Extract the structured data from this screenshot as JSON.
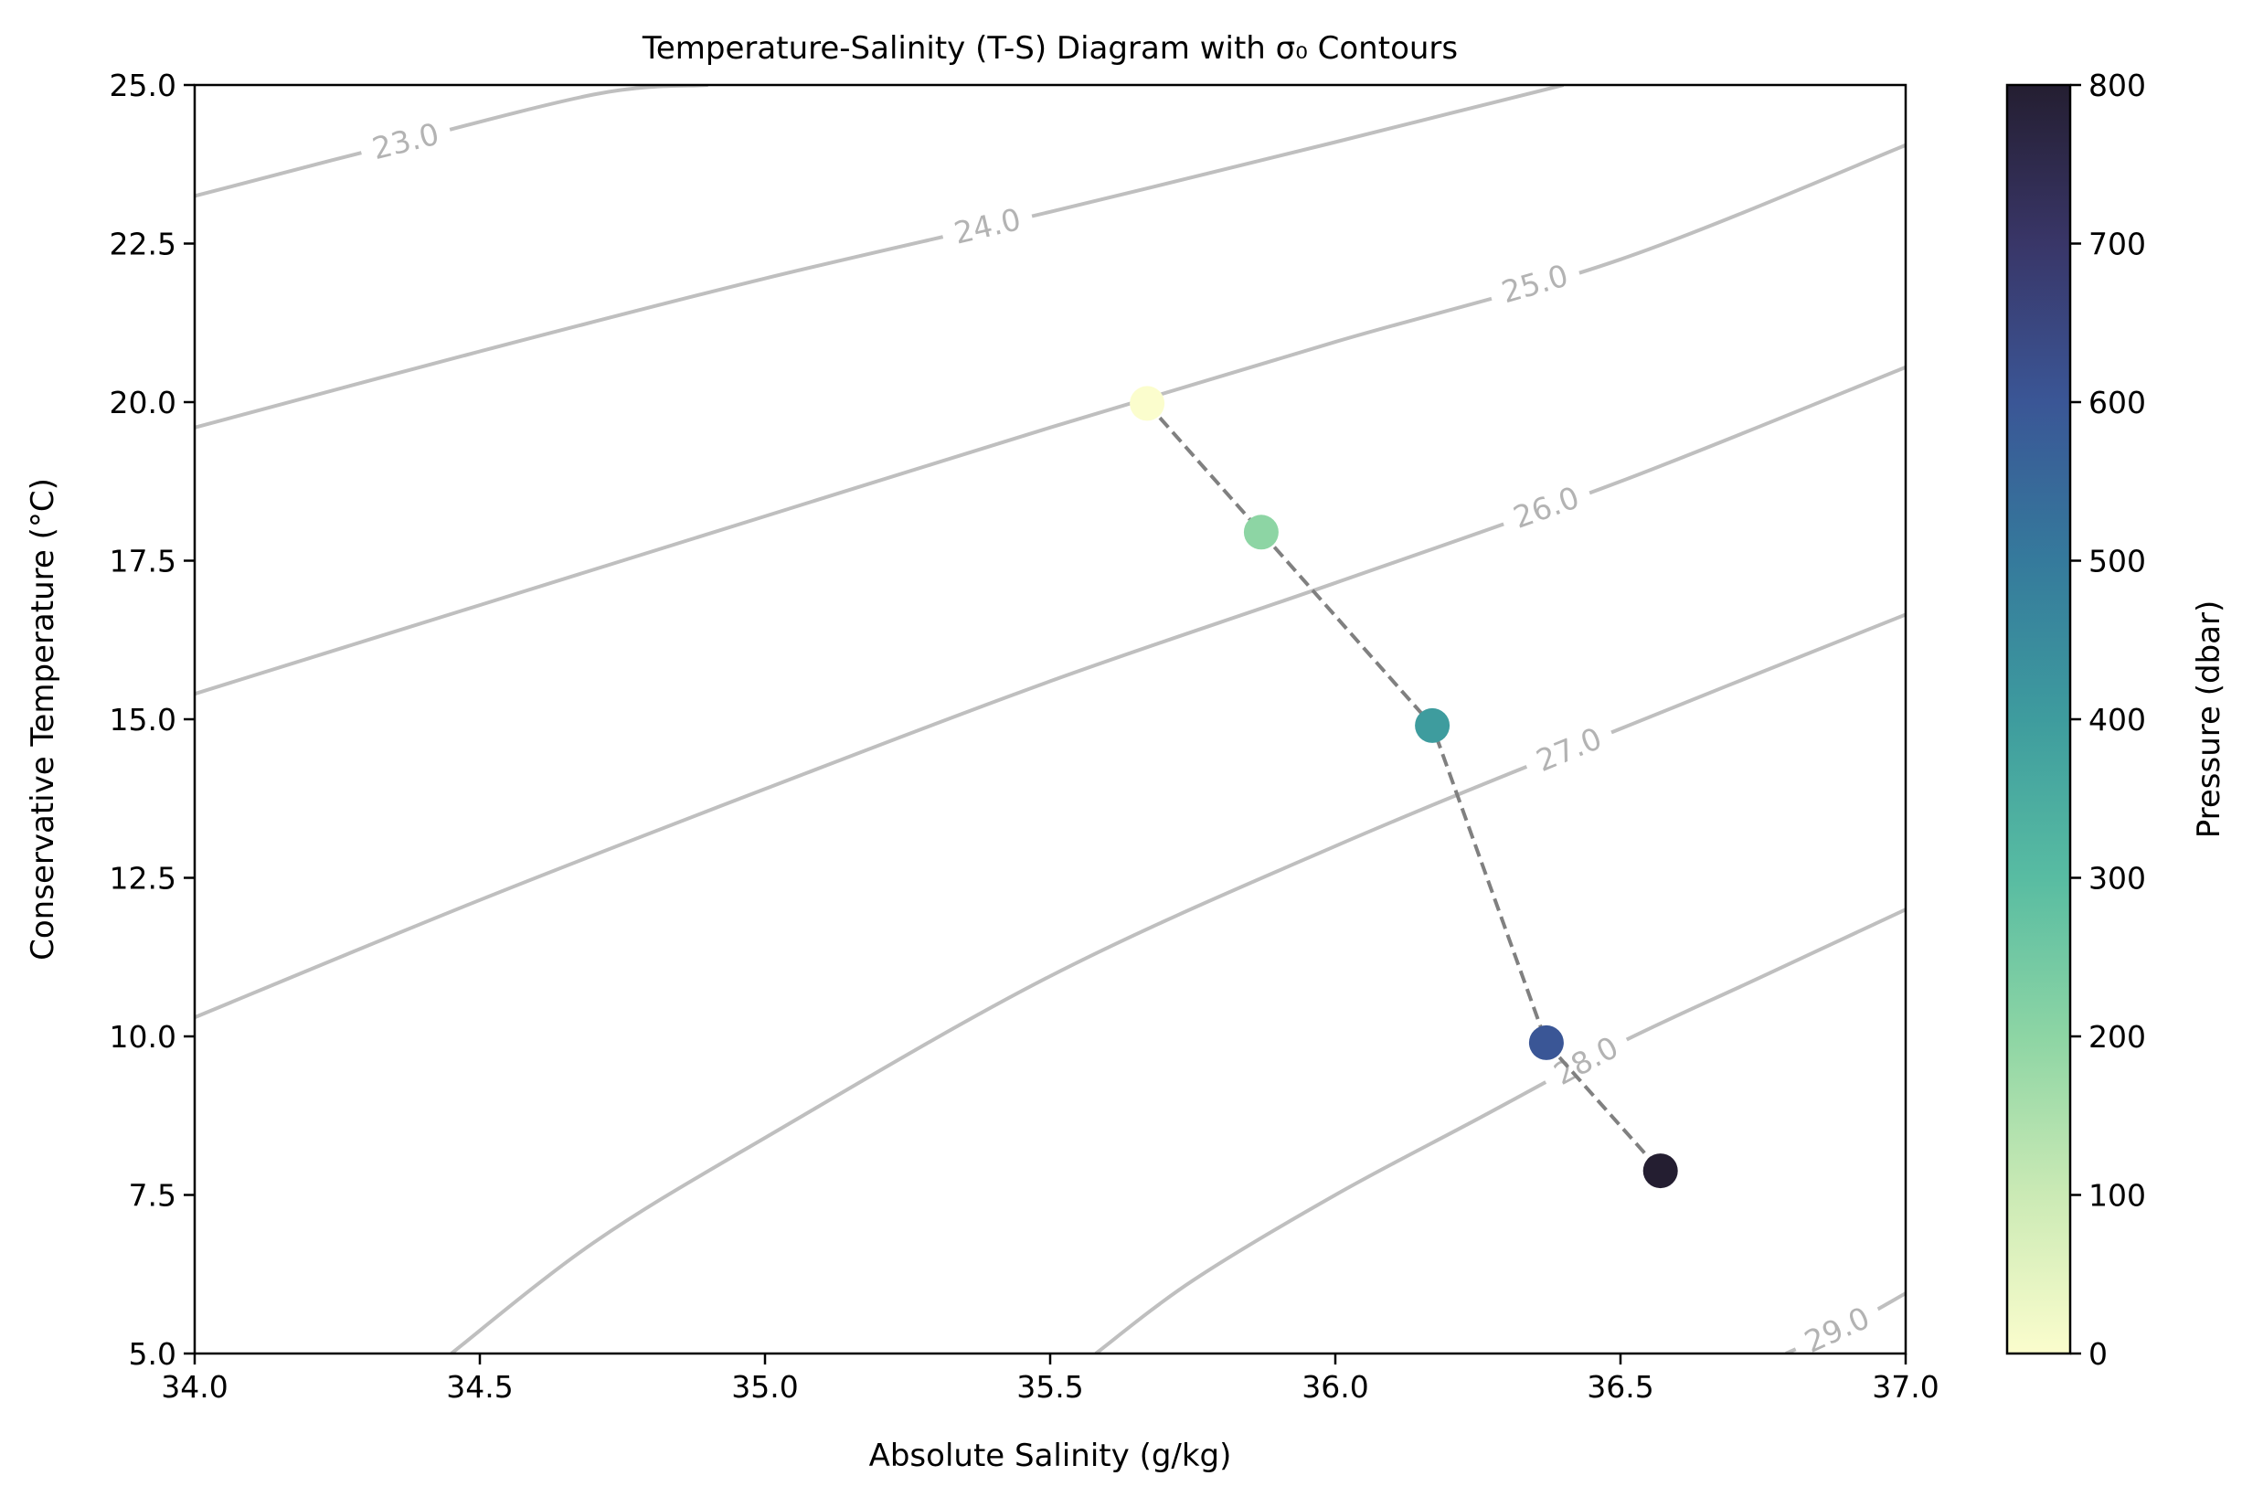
{
  "chart_data": {
    "type": "scatter",
    "title": "Temperature-Salinity (T-S) Diagram with σ₀ Contours",
    "xlabel": "Absolute Salinity (g/kg)",
    "ylabel": "Conservative Temperature (°C)",
    "xlim": [
      34.0,
      37.0
    ],
    "ylim": [
      5.0,
      25.0
    ],
    "xticks": [
      34.0,
      34.5,
      35.0,
      35.5,
      36.0,
      36.5,
      37.0
    ],
    "xtick_labels": [
      "34.0",
      "34.5",
      "35.0",
      "35.5",
      "36.0",
      "36.5",
      "37.0"
    ],
    "yticks": [
      5.0,
      7.5,
      10.0,
      12.5,
      15.0,
      17.5,
      20.0,
      22.5,
      25.0
    ],
    "ytick_labels": [
      "5.0",
      "7.5",
      "10.0",
      "12.5",
      "15.0",
      "17.5",
      "20.0",
      "22.5",
      "25.0"
    ],
    "grid": false,
    "series": [
      {
        "style": "scatter + dashed line",
        "line_color": "#808080",
        "points": [
          {
            "salinity": 35.67,
            "temperature": 19.98,
            "pressure": 0
          },
          {
            "salinity": 35.87,
            "temperature": 17.95,
            "pressure": 200
          },
          {
            "salinity": 36.17,
            "temperature": 14.9,
            "pressure": 400
          },
          {
            "salinity": 36.37,
            "temperature": 9.9,
            "pressure": 600
          },
          {
            "salinity": 36.57,
            "temperature": 7.88,
            "pressure": 800
          }
        ]
      }
    ],
    "contours": {
      "variable": "σ₀",
      "color": "#bfbfbf",
      "levels": [
        {
          "label": "23.0",
          "points": [
            [
              34.0,
              23.25
            ],
            [
              34.3,
              23.95
            ],
            [
              34.7,
              24.85
            ],
            [
              34.9,
              25.0
            ]
          ]
        },
        {
          "label": "24.0",
          "points": [
            [
              34.0,
              19.6
            ],
            [
              34.5,
              20.8
            ],
            [
              35.0,
              21.95
            ],
            [
              35.5,
              23.0
            ],
            [
              36.0,
              24.1
            ],
            [
              36.2,
              24.55
            ],
            [
              36.4,
              25.0
            ]
          ]
        },
        {
          "label": "25.0",
          "points": [
            [
              34.0,
              15.4
            ],
            [
              34.5,
              16.8
            ],
            [
              35.0,
              18.2
            ],
            [
              35.5,
              19.6
            ],
            [
              36.0,
              20.95
            ],
            [
              36.5,
              22.25
            ],
            [
              37.0,
              24.05
            ]
          ]
        },
        {
          "label": "26.0",
          "points": [
            [
              34.0,
              10.3
            ],
            [
              34.5,
              12.15
            ],
            [
              35.0,
              13.9
            ],
            [
              35.5,
              15.6
            ],
            [
              36.0,
              17.15
            ],
            [
              36.5,
              18.75
            ],
            [
              37.0,
              20.55
            ]
          ]
        },
        {
          "label": "27.0",
          "points": [
            [
              34.45,
              5.0
            ],
            [
              34.7,
              6.75
            ],
            [
              35.0,
              8.4
            ],
            [
              35.5,
              10.95
            ],
            [
              36.0,
              13.0
            ],
            [
              36.5,
              14.85
            ],
            [
              37.0,
              16.65
            ]
          ]
        },
        {
          "label": "28.0",
          "points": [
            [
              35.58,
              5.0
            ],
            [
              35.75,
              6.15
            ],
            [
              36.0,
              7.5
            ],
            [
              36.25,
              8.7
            ],
            [
              36.5,
              9.9
            ],
            [
              36.75,
              10.95
            ],
            [
              37.0,
              12.0
            ]
          ]
        },
        {
          "label": "29.0",
          "points": [
            [
              36.79,
              5.0
            ],
            [
              36.9,
              5.45
            ],
            [
              37.0,
              5.95
            ]
          ]
        }
      ]
    },
    "colorbar": {
      "label": "Pressure (dbar)",
      "range": [
        0,
        800
      ],
      "ticks": [
        0,
        100,
        200,
        300,
        400,
        500,
        600,
        700,
        800
      ],
      "tick_labels": [
        "0",
        "100",
        "200",
        "300",
        "400",
        "500",
        "600",
        "700",
        "800"
      ],
      "colormap_stops": [
        "#fbfdcd",
        "#cbeab5",
        "#8dd5a4",
        "#58bca2",
        "#3e9c9e",
        "#357a9c",
        "#3a5696",
        "#393668",
        "#241e31"
      ]
    }
  }
}
